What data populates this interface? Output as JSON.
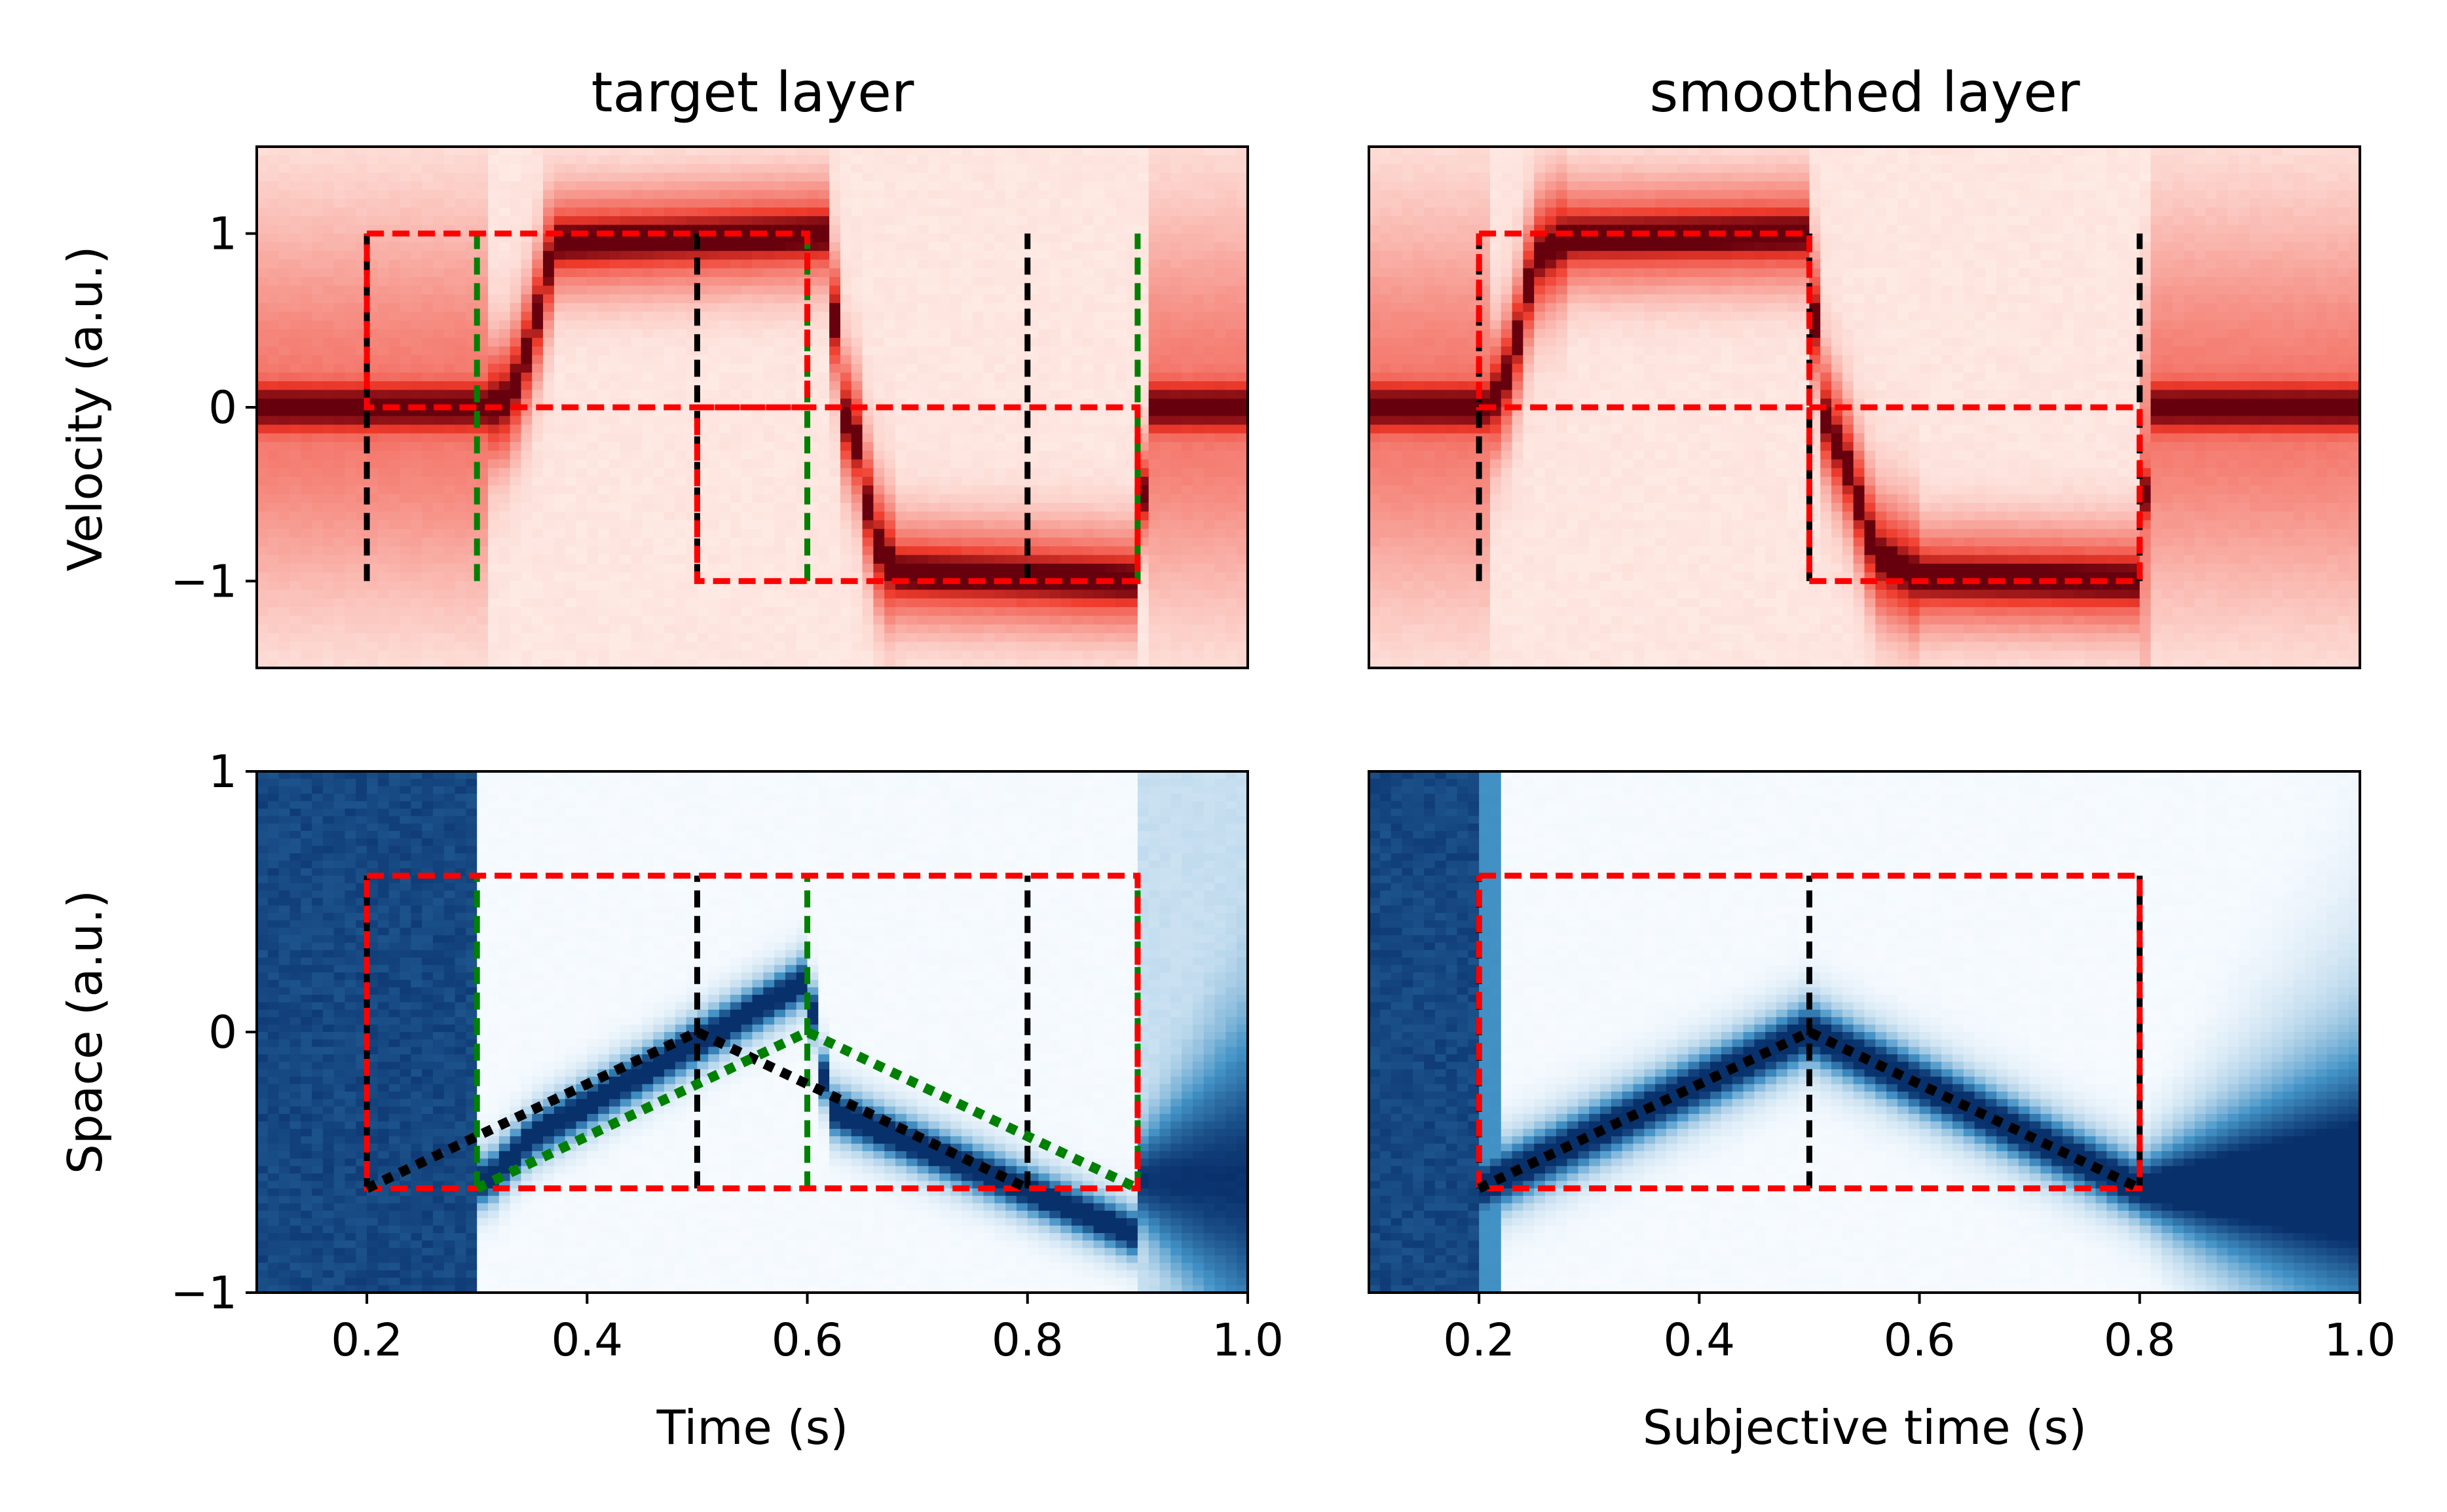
{
  "colors": {
    "vel_min": "#fff5f0",
    "vel_mid": "#ef3b2c",
    "vel_max": "#67000d",
    "space_min": "#f7fbff",
    "space_mid": "#4292c6",
    "space_max": "#08306b",
    "guide_red": "#ff0000",
    "guide_black": "#000000",
    "guide_green": "#008000"
  },
  "chart_data": [
    {
      "type": "heatmap",
      "title": "target layer",
      "xlabel": "",
      "ylabel": "Velocity (a.u.)",
      "xlim": [
        0.1,
        1.0
      ],
      "ylim": [
        -1.5,
        1.5
      ],
      "y_ticks": [
        1,
        0,
        -1
      ],
      "y_tick_labels": [
        "1",
        "0",
        "−1"
      ],
      "colormap": "Reds",
      "x_tick_labels_shown": false,
      "ridge": [
        {
          "t": 0.1,
          "v": 0
        },
        {
          "t": 0.31,
          "v": 0
        },
        {
          "t": 0.33,
          "v": 0.05
        },
        {
          "t": 0.35,
          "v": 0.4
        },
        {
          "t": 0.37,
          "v": 0.95
        },
        {
          "t": 0.62,
          "v": 1.0
        },
        {
          "t": 0.63,
          "v": 0
        },
        {
          "t": 0.645,
          "v": -0.2
        },
        {
          "t": 0.66,
          "v": -0.75
        },
        {
          "t": 0.68,
          "v": -0.95
        },
        {
          "t": 0.9,
          "v": -1.0
        },
        {
          "t": 0.91,
          "v": 0
        },
        {
          "t": 1.0,
          "v": 0
        }
      ],
      "guides": {
        "red_dashed_rect": [
          {
            "x": [
              0.2,
              0.6
            ],
            "y": [
              0,
              1
            ]
          },
          {
            "x": [
              0.5,
              0.9
            ],
            "y": [
              -1,
              0
            ]
          }
        ],
        "black_dashed_vlines": [
          0.2,
          0.5,
          0.8
        ],
        "green_dashed_vlines": [
          0.3,
          0.6,
          0.9
        ],
        "vline_y_range": [
          -1,
          1
        ]
      }
    },
    {
      "type": "heatmap",
      "title": "smoothed layer",
      "xlabel": "",
      "ylabel": "",
      "xlim": [
        0.1,
        1.0
      ],
      "ylim": [
        -1.5,
        1.5
      ],
      "colormap": "Reds",
      "y_tick_labels_shown": false,
      "x_tick_labels_shown": false,
      "ridge": [
        {
          "t": 0.1,
          "v": 0
        },
        {
          "t": 0.21,
          "v": 0
        },
        {
          "t": 0.23,
          "v": 0.25
        },
        {
          "t": 0.25,
          "v": 0.85
        },
        {
          "t": 0.28,
          "v": 0.98
        },
        {
          "t": 0.5,
          "v": 1.0
        },
        {
          "t": 0.51,
          "v": 0
        },
        {
          "t": 0.535,
          "v": -0.35
        },
        {
          "t": 0.56,
          "v": -0.85
        },
        {
          "t": 0.6,
          "v": -0.98
        },
        {
          "t": 0.8,
          "v": -1.0
        },
        {
          "t": 0.81,
          "v": 0
        },
        {
          "t": 1.0,
          "v": 0
        }
      ],
      "guides": {
        "red_dashed_rect": [
          {
            "x": [
              0.2,
              0.5
            ],
            "y": [
              0,
              1
            ]
          },
          {
            "x": [
              0.5,
              0.8
            ],
            "y": [
              -1,
              0
            ]
          }
        ],
        "black_dashed_vlines": [
          0.2,
          0.5,
          0.8
        ],
        "green_dashed_vlines": [],
        "vline_y_range": [
          -1,
          1
        ]
      }
    },
    {
      "type": "heatmap",
      "title": "",
      "xlabel": "Time (s)",
      "ylabel": "Space (a.u.)",
      "xlim": [
        0.1,
        1.0
      ],
      "ylim": [
        -1,
        1
      ],
      "x_ticks": [
        0.2,
        0.4,
        0.6,
        0.8,
        1.0
      ],
      "x_tick_labels": [
        "0.2",
        "0.4",
        "0.6",
        "0.8",
        "1.0"
      ],
      "y_ticks": [
        1,
        0,
        -1
      ],
      "y_tick_labels": [
        "1",
        "0",
        "−1"
      ],
      "colormap": "Blues",
      "ridge": [
        {
          "t": 0.31,
          "s": -0.57
        },
        {
          "t": 0.35,
          "s": -0.4
        },
        {
          "t": 0.6,
          "s": 0.2
        },
        {
          "t": 0.62,
          "s": -0.3
        },
        {
          "t": 0.9,
          "s": -0.78
        }
      ],
      "guides": {
        "red_dashed_rect": [
          {
            "x": [
              0.2,
              0.9
            ],
            "y": [
              -0.6,
              0.6
            ]
          }
        ],
        "black_dashed_vlines": [
          0.2,
          0.5,
          0.8
        ],
        "green_dashed_vlines": [
          0.3,
          0.6,
          0.9
        ],
        "vline_y_range": [
          -0.6,
          0.6
        ],
        "black_dotted_path": [
          [
            0.2,
            -0.6
          ],
          [
            0.5,
            0.0
          ],
          [
            0.8,
            -0.6
          ]
        ],
        "green_dotted_path": [
          [
            0.3,
            -0.6
          ],
          [
            0.6,
            0.0
          ],
          [
            0.9,
            -0.6
          ]
        ]
      }
    },
    {
      "type": "heatmap",
      "title": "",
      "xlabel": "Subjective time (s)",
      "ylabel": "",
      "xlim": [
        0.1,
        1.0
      ],
      "ylim": [
        -1,
        1
      ],
      "x_ticks": [
        0.2,
        0.4,
        0.6,
        0.8,
        1.0
      ],
      "x_tick_labels": [
        "0.2",
        "0.4",
        "0.6",
        "0.8",
        "1.0"
      ],
      "y_tick_labels_shown": false,
      "colormap": "Blues",
      "ridge": [
        {
          "t": 0.2,
          "s": -0.6
        },
        {
          "t": 0.5,
          "s": 0.0
        },
        {
          "t": 0.8,
          "s": -0.6
        }
      ],
      "guides": {
        "red_dashed_rect": [
          {
            "x": [
              0.2,
              0.8
            ],
            "y": [
              -0.6,
              0.6
            ]
          }
        ],
        "black_dashed_vlines": [
          0.2,
          0.5,
          0.8
        ],
        "green_dashed_vlines": [],
        "vline_y_range": [
          -0.6,
          0.6
        ],
        "black_dotted_path": [
          [
            0.2,
            -0.6
          ],
          [
            0.5,
            0.0
          ],
          [
            0.8,
            -0.6
          ]
        ],
        "green_dotted_path": []
      }
    }
  ]
}
